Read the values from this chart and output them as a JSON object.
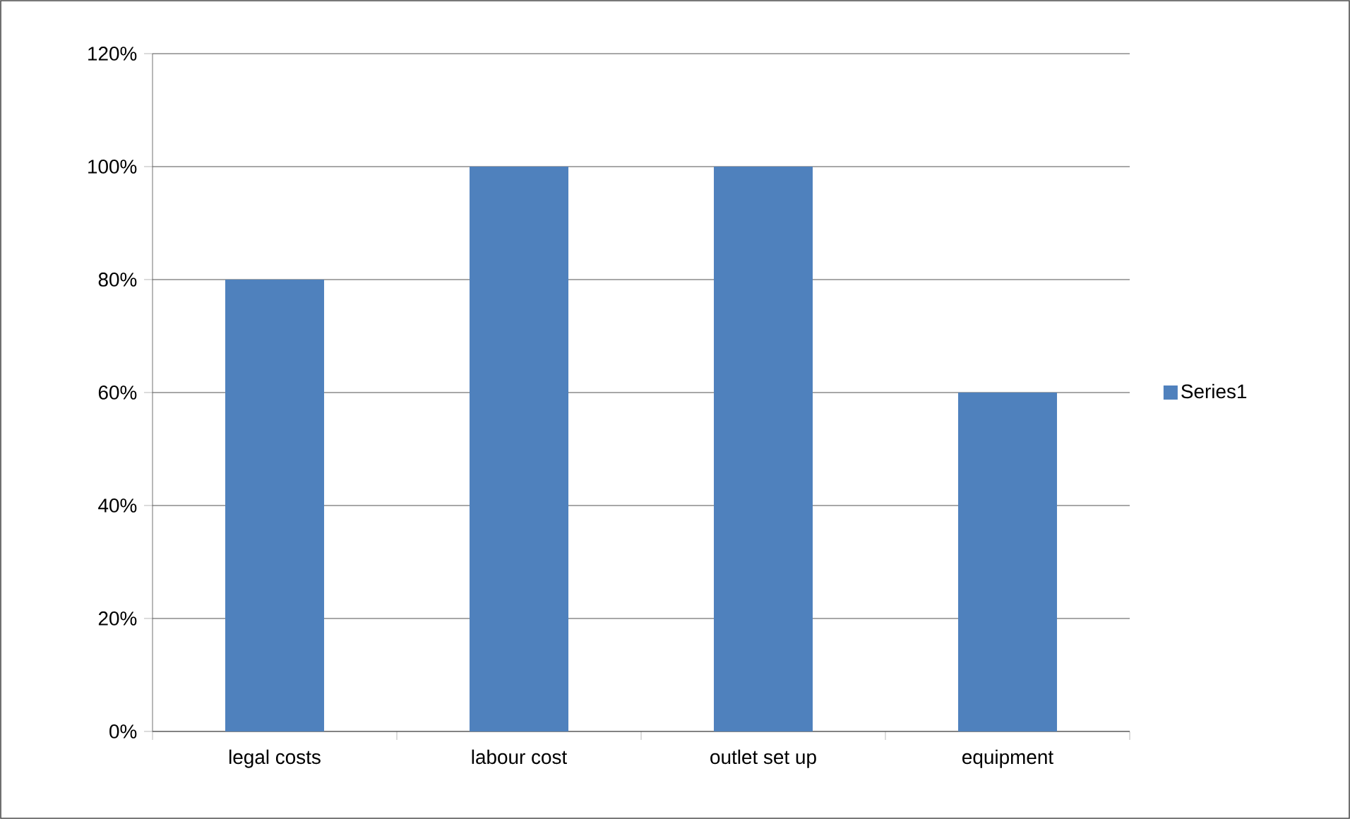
{
  "chart_data": {
    "type": "bar",
    "categories": [
      "legal costs",
      "labour cost",
      "outlet set up",
      "equipment"
    ],
    "series": [
      {
        "name": "Series1",
        "color": "#4f81bd",
        "values": [
          80,
          100,
          100,
          60
        ]
      }
    ],
    "ylim": [
      0,
      120
    ],
    "yticks": [
      {
        "value": 0,
        "label": "0%"
      },
      {
        "value": 20,
        "label": "20%"
      },
      {
        "value": 40,
        "label": "40%"
      },
      {
        "value": 60,
        "label": "60%"
      },
      {
        "value": 80,
        "label": "80%"
      },
      {
        "value": 100,
        "label": "100%"
      },
      {
        "value": 120,
        "label": "120%"
      }
    ],
    "grid": "y",
    "legend": "right"
  }
}
